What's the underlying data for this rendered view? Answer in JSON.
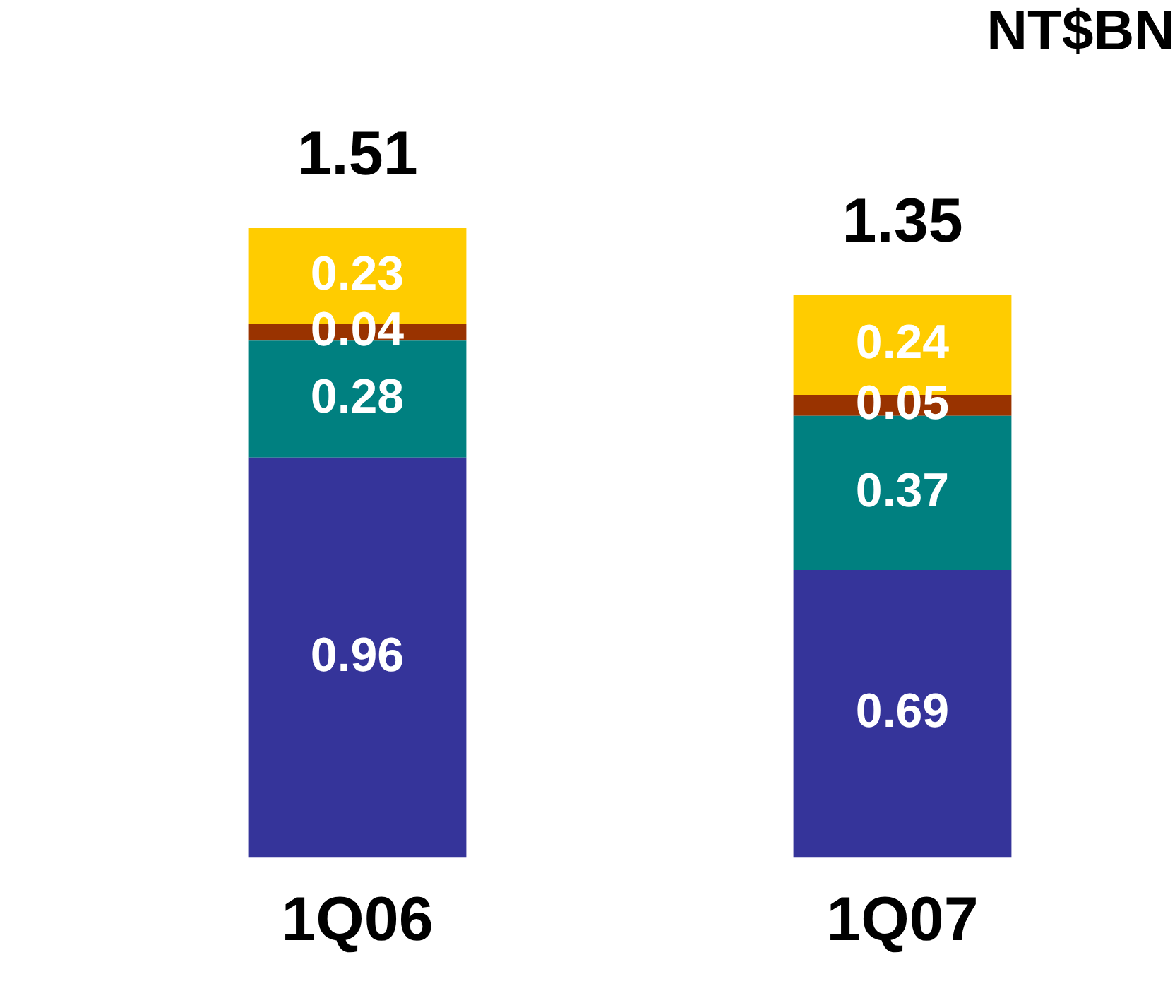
{
  "chart_data": {
    "type": "bar",
    "title": "NT$BN",
    "categories": [
      "1Q06",
      "1Q07"
    ],
    "stacked": true,
    "data_labels": true,
    "totals": [
      "1.51",
      "1.35"
    ],
    "legend": false,
    "grid": false,
    "series": [
      {
        "color": "#35349a",
        "values": [
          0.96,
          0.69
        ]
      },
      {
        "color": "#008080",
        "values": [
          0.28,
          0.37
        ]
      },
      {
        "color": "#993300",
        "values": [
          0.04,
          0.05
        ]
      },
      {
        "color": "#ffcc00",
        "values": [
          0.23,
          0.24
        ]
      }
    ]
  }
}
